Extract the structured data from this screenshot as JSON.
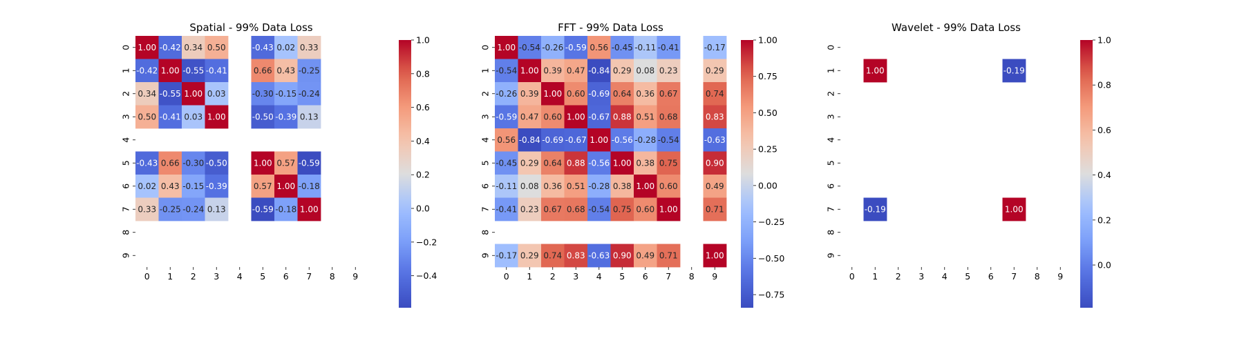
{
  "chart_data": [
    {
      "type": "heatmap",
      "title": "Spatial - 99% Data Loss",
      "x_labels": [
        "0",
        "1",
        "2",
        "3",
        "4",
        "5",
        "6",
        "7",
        "8",
        "9"
      ],
      "y_labels": [
        "0",
        "1",
        "2",
        "3",
        "4",
        "5",
        "6",
        "7",
        "8",
        "9"
      ],
      "matrix": [
        [
          1.0,
          -0.42,
          0.34,
          0.5,
          null,
          -0.43,
          0.02,
          0.33,
          null,
          null
        ],
        [
          -0.42,
          1.0,
          -0.55,
          -0.41,
          null,
          0.66,
          0.43,
          -0.25,
          null,
          null
        ],
        [
          0.34,
          -0.55,
          1.0,
          0.03,
          null,
          -0.3,
          -0.15,
          -0.24,
          null,
          null
        ],
        [
          0.5,
          -0.41,
          0.03,
          1.0,
          null,
          -0.5,
          -0.39,
          0.13,
          null,
          null
        ],
        [
          null,
          null,
          null,
          null,
          null,
          null,
          null,
          null,
          null,
          null
        ],
        [
          -0.43,
          0.66,
          -0.3,
          -0.5,
          null,
          1.0,
          0.57,
          -0.59,
          null,
          null
        ],
        [
          0.02,
          0.43,
          -0.15,
          -0.39,
          null,
          0.57,
          1.0,
          -0.18,
          null,
          null
        ],
        [
          0.33,
          -0.25,
          -0.24,
          0.13,
          null,
          -0.59,
          -0.18,
          1.0,
          null,
          null
        ],
        [
          null,
          null,
          null,
          null,
          null,
          null,
          null,
          null,
          null,
          null
        ],
        [
          null,
          null,
          null,
          null,
          null,
          null,
          null,
          null,
          null,
          null
        ]
      ],
      "vmin": -0.59,
      "vmax": 1.0,
      "colorbar_ticks": [
        "1.0",
        "0.8",
        "0.6",
        "0.4",
        "0.2",
        "0.0",
        "−0.2",
        "−0.4"
      ],
      "colorbar_tick_values": [
        1.0,
        0.8,
        0.6,
        0.4,
        0.2,
        0.0,
        -0.2,
        -0.4
      ],
      "colormap": "coolwarm"
    },
    {
      "type": "heatmap",
      "title": "FFT - 99% Data Loss",
      "x_labels": [
        "0",
        "1",
        "2",
        "3",
        "4",
        "5",
        "6",
        "7",
        "8",
        "9"
      ],
      "y_labels": [
        "0",
        "1",
        "2",
        "3",
        "4",
        "5",
        "6",
        "7",
        "8",
        "9"
      ],
      "matrix": [
        [
          1.0,
          -0.54,
          -0.26,
          -0.59,
          0.56,
          -0.45,
          -0.11,
          -0.41,
          null,
          -0.17
        ],
        [
          -0.54,
          1.0,
          0.39,
          0.47,
          -0.84,
          0.29,
          0.08,
          0.23,
          null,
          0.29
        ],
        [
          -0.26,
          0.39,
          1.0,
          0.6,
          -0.69,
          0.64,
          0.36,
          0.67,
          null,
          0.74
        ],
        [
          -0.59,
          0.47,
          0.6,
          1.0,
          -0.67,
          0.88,
          0.51,
          0.68,
          null,
          0.83
        ],
        [
          0.56,
          -0.84,
          -0.69,
          -0.67,
          1.0,
          -0.56,
          -0.28,
          -0.54,
          null,
          -0.63
        ],
        [
          -0.45,
          0.29,
          0.64,
          0.88,
          -0.56,
          1.0,
          0.38,
          0.75,
          null,
          0.9
        ],
        [
          -0.11,
          0.08,
          0.36,
          0.51,
          -0.28,
          0.38,
          1.0,
          0.6,
          null,
          0.49
        ],
        [
          -0.41,
          0.23,
          0.67,
          0.68,
          -0.54,
          0.75,
          0.6,
          1.0,
          null,
          0.71
        ],
        [
          null,
          null,
          null,
          null,
          null,
          null,
          null,
          null,
          null,
          null
        ],
        [
          -0.17,
          0.29,
          0.74,
          0.83,
          -0.63,
          0.9,
          0.49,
          0.71,
          null,
          1.0
        ]
      ],
      "vmin": -0.84,
      "vmax": 1.0,
      "colorbar_ticks": [
        "1.00",
        "0.75",
        "0.50",
        "0.25",
        "0.00",
        "−0.25",
        "−0.50",
        "−0.75"
      ],
      "colorbar_tick_values": [
        1.0,
        0.75,
        0.5,
        0.25,
        0.0,
        -0.25,
        -0.5,
        -0.75
      ],
      "colormap": "coolwarm"
    },
    {
      "type": "heatmap",
      "title": "Wavelet - 99% Data Loss",
      "x_labels": [
        "0",
        "1",
        "2",
        "3",
        "4",
        "5",
        "6",
        "7",
        "8",
        "9"
      ],
      "y_labels": [
        "0",
        "1",
        "2",
        "3",
        "4",
        "5",
        "6",
        "7",
        "8",
        "9"
      ],
      "matrix": [
        [
          null,
          null,
          null,
          null,
          null,
          null,
          null,
          null,
          null,
          null
        ],
        [
          null,
          1.0,
          null,
          null,
          null,
          null,
          null,
          -0.19,
          null,
          null
        ],
        [
          null,
          null,
          null,
          null,
          null,
          null,
          null,
          null,
          null,
          null
        ],
        [
          null,
          null,
          null,
          null,
          null,
          null,
          null,
          null,
          null,
          null
        ],
        [
          null,
          null,
          null,
          null,
          null,
          null,
          null,
          null,
          null,
          null
        ],
        [
          null,
          null,
          null,
          null,
          null,
          null,
          null,
          null,
          null,
          null
        ],
        [
          null,
          null,
          null,
          null,
          null,
          null,
          null,
          null,
          null,
          null
        ],
        [
          null,
          -0.19,
          null,
          null,
          null,
          null,
          null,
          1.0,
          null,
          null
        ],
        [
          null,
          null,
          null,
          null,
          null,
          null,
          null,
          null,
          null,
          null
        ],
        [
          null,
          null,
          null,
          null,
          null,
          null,
          null,
          null,
          null,
          null
        ]
      ],
      "vmin": -0.19,
      "vmax": 1.0,
      "colorbar_ticks": [
        "1.0",
        "0.8",
        "0.6",
        "0.4",
        "0.2",
        "0.0"
      ],
      "colorbar_tick_values": [
        1.0,
        0.8,
        0.6,
        0.4,
        0.2,
        0.0
      ],
      "colormap": "coolwarm"
    }
  ]
}
